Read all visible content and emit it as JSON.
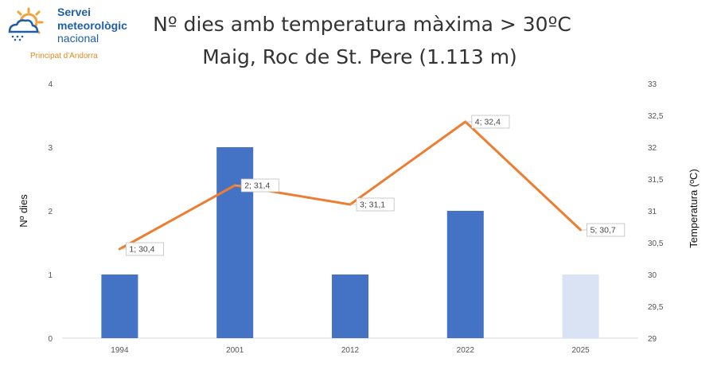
{
  "logo": {
    "line1": "Servei",
    "line2": "meteorològic",
    "line3": "nacional",
    "sub": "Principat d'Andorra",
    "icon": "sun-cloud-rain-icon",
    "colors": {
      "blue": "#1f5fa8",
      "orange": "#f2a23a"
    }
  },
  "chart_data": {
    "type": "bar+line",
    "title": "Nº dies amb temperatura màxima > 30ºC",
    "subtitle": "Maig, Roc de St. Pere (1.113 m)",
    "categories": [
      "1994",
      "2001",
      "2012",
      "2022",
      "2025"
    ],
    "ylabel": "Nº dies",
    "y2label": "Temperatura (ºC)",
    "ylim": [
      0,
      4
    ],
    "y2lim": [
      29,
      33
    ],
    "yticks": [
      "0",
      "1",
      "2",
      "3",
      "4"
    ],
    "y2ticks": [
      "29",
      "29,5",
      "30",
      "30,5",
      "31",
      "31,5",
      "32",
      "32,5",
      "33"
    ],
    "bars": {
      "values": [
        1,
        3,
        1,
        2,
        1
      ],
      "colors": [
        "#4472c4",
        "#4472c4",
        "#4472c4",
        "#4472c4",
        "#dae3f3"
      ]
    },
    "line": {
      "values": [
        30.4,
        31.4,
        31.1,
        32.4,
        30.7
      ],
      "labels": [
        "1; 30,4",
        "2; 31,4",
        "3; 31,1",
        "4; 32,4",
        "5; 30,7"
      ],
      "color": "#ed7d31"
    },
    "grid": false
  }
}
